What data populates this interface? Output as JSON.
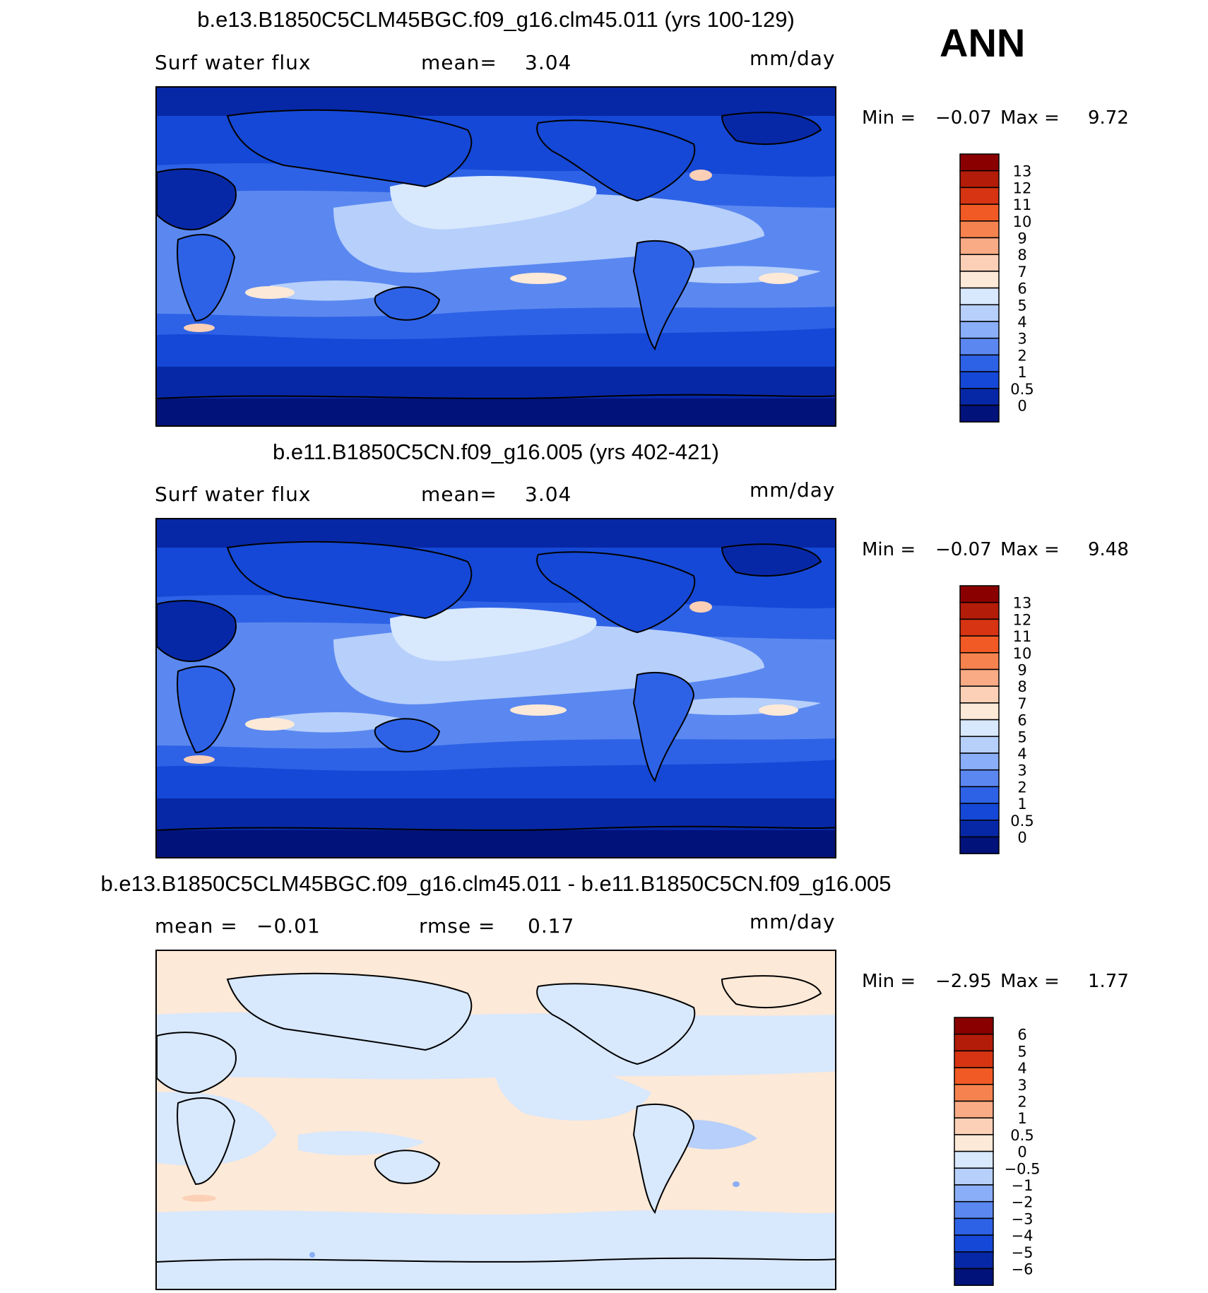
{
  "season": "ANN",
  "colors": {
    "seq": [
      "#01127a",
      "#0728a6",
      "#1548d6",
      "#2e62e6",
      "#5b88f0",
      "#8aaef7",
      "#b6cffb",
      "#d8e8fd",
      "#fde9d7",
      "#fbd0b6",
      "#f8ab85",
      "#f6834f",
      "#f15a24",
      "#d73413",
      "#b31c08",
      "#8a0000"
    ],
    "diff": [
      "#01127a",
      "#0728a6",
      "#1548d6",
      "#2e62e6",
      "#5b88f0",
      "#8aaef7",
      "#b6cffb",
      "#d8e8fd",
      "#fde9d7",
      "#fbd0b6",
      "#f8ab85",
      "#f6834f",
      "#f15a24",
      "#d73413",
      "#b31c08",
      "#8a0000"
    ]
  },
  "panels": [
    {
      "title": "b.e13.B1850C5CLM45BGC.f09_g16.clm45.011 (yrs 100-129)",
      "variable": "Surf water flux",
      "mean_label": "mean=",
      "mean_value": "3.04",
      "units": "mm/day",
      "min_label": "Min =",
      "min_value": "−0.07",
      "max_label": "Max =",
      "max_value": "9.72"
    },
    {
      "title": "b.e11.B1850C5CN.f09_g16.005 (yrs 402-421)",
      "variable": "Surf water flux",
      "mean_label": "mean=",
      "mean_value": "3.04",
      "units": "mm/day",
      "min_label": "Min =",
      "min_value": "−0.07",
      "max_label": "Max =",
      "max_value": "9.48"
    },
    {
      "title": "b.e13.B1850C5CLM45BGC.f09_g16.clm45.011 - b.e11.B1850C5CN.f09_g16.005",
      "mean_label": "mean =",
      "mean_value": "−0.01",
      "rmse_label": "rmse =",
      "rmse_value": "0.17",
      "units": "mm/day",
      "min_label": "Min =",
      "min_value": "−2.95",
      "max_label": "Max =",
      "max_value": "1.77"
    }
  ],
  "chart_data": [
    {
      "type": "heatmap",
      "title": "b.e13.B1850C5CLM45BGC.f09_g16.clm45.011 (yrs 100-129)",
      "variable": "Surf water flux",
      "units": "mm/day",
      "mean": 3.04,
      "min": -0.07,
      "max": 9.72,
      "colorbar_levels": [
        0,
        0.5,
        1,
        2,
        3,
        4,
        5,
        6,
        7,
        8,
        9,
        10,
        11,
        12,
        13
      ],
      "colorbar_labels": [
        "13",
        "12",
        "11",
        "10",
        "9",
        "8",
        "7",
        "6",
        "5",
        "4",
        "3",
        "2",
        "1",
        "0.5",
        "0"
      ]
    },
    {
      "type": "heatmap",
      "title": "b.e11.B1850C5CN.f09_g16.005 (yrs 402-421)",
      "variable": "Surf water flux",
      "units": "mm/day",
      "mean": 3.04,
      "min": -0.07,
      "max": 9.48,
      "colorbar_levels": [
        0,
        0.5,
        1,
        2,
        3,
        4,
        5,
        6,
        7,
        8,
        9,
        10,
        11,
        12,
        13
      ],
      "colorbar_labels": [
        "13",
        "12",
        "11",
        "10",
        "9",
        "8",
        "7",
        "6",
        "5",
        "4",
        "3",
        "2",
        "1",
        "0.5",
        "0"
      ]
    },
    {
      "type": "heatmap",
      "title": "b.e13.B1850C5CLM45BGC.f09_g16.clm45.011 - b.e11.B1850C5CN.f09_g16.005",
      "units": "mm/day",
      "mean": -0.01,
      "rmse": 0.17,
      "min": -2.95,
      "max": 1.77,
      "colorbar_levels": [
        -6,
        -5,
        -4,
        -3,
        -2,
        -1,
        -0.5,
        0,
        0.5,
        1,
        2,
        3,
        4,
        5,
        6
      ],
      "colorbar_labels": [
        "6",
        "5",
        "4",
        "3",
        "2",
        "1",
        "0.5",
        "0",
        "−0.5",
        "−1",
        "−2",
        "−3",
        "−4",
        "−5",
        "−6"
      ]
    }
  ]
}
